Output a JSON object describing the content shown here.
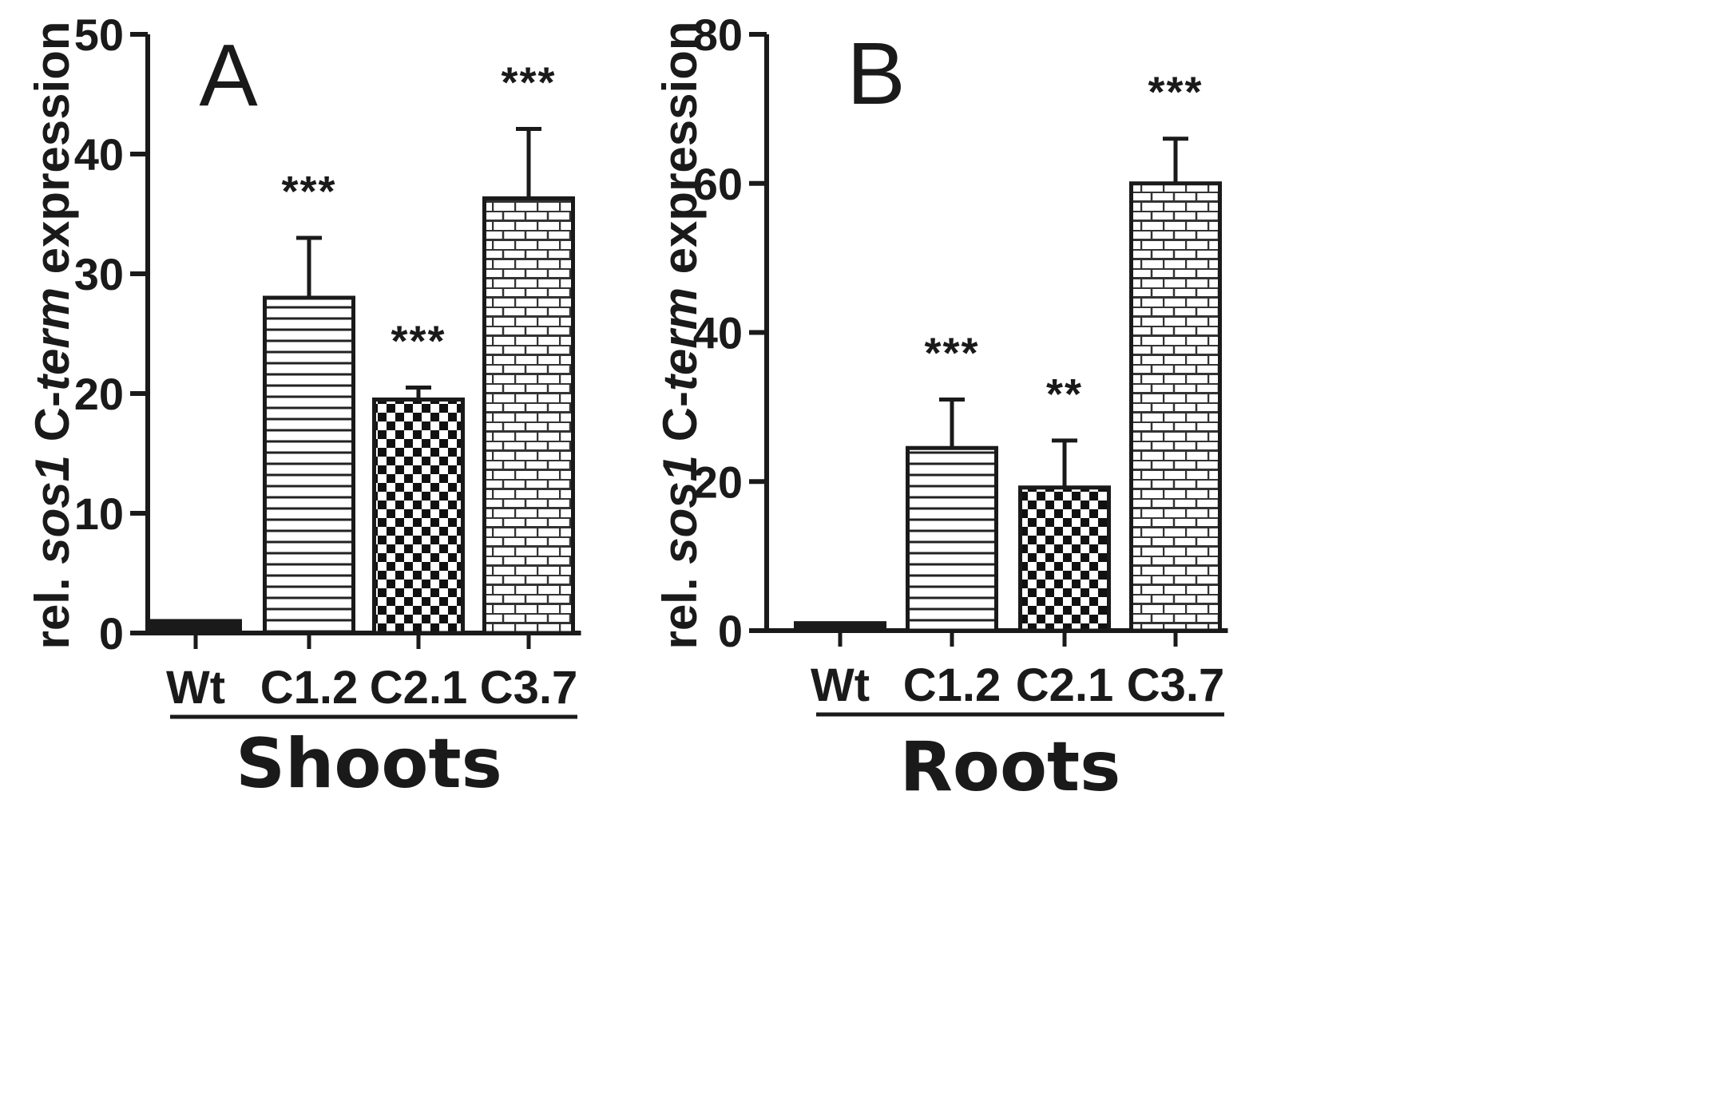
{
  "chart_data": [
    {
      "type": "bar",
      "panel": "A",
      "group_label": "Shoots",
      "ylabel_parts": [
        "rel. ",
        "sos1",
        " C-",
        "term",
        " expression"
      ],
      "ylabel_italic": [
        false,
        true,
        false,
        true,
        false
      ],
      "ylim": [
        0,
        50
      ],
      "yticks": [
        0,
        10,
        20,
        30,
        40,
        50
      ],
      "categories": [
        "Wt",
        "C1.2",
        "C2.1",
        "C3.7"
      ],
      "values": [
        1,
        28,
        19.5,
        36.3
      ],
      "errors": [
        0.1,
        5,
        1,
        5.8
      ],
      "significance": [
        "",
        "***",
        "***",
        "***"
      ],
      "patterns": [
        "solid",
        "horizontal-lines",
        "checker",
        "brick"
      ]
    },
    {
      "type": "bar",
      "panel": "B",
      "group_label": "Roots",
      "ylabel_parts": [
        "rel. ",
        "sos1",
        " C-",
        "term",
        " expression"
      ],
      "ylabel_italic": [
        false,
        true,
        false,
        true,
        false
      ],
      "ylim": [
        0,
        80
      ],
      "yticks": [
        0,
        20,
        40,
        60,
        80
      ],
      "categories": [
        "Wt",
        "C1.2",
        "C2.1",
        "C3.7"
      ],
      "values": [
        1,
        24.5,
        19.2,
        60
      ],
      "errors": [
        0.2,
        6.5,
        6.3,
        6
      ],
      "significance": [
        "",
        "***",
        "**",
        "***"
      ],
      "patterns": [
        "solid",
        "horizontal-lines",
        "checker",
        "brick"
      ]
    }
  ]
}
